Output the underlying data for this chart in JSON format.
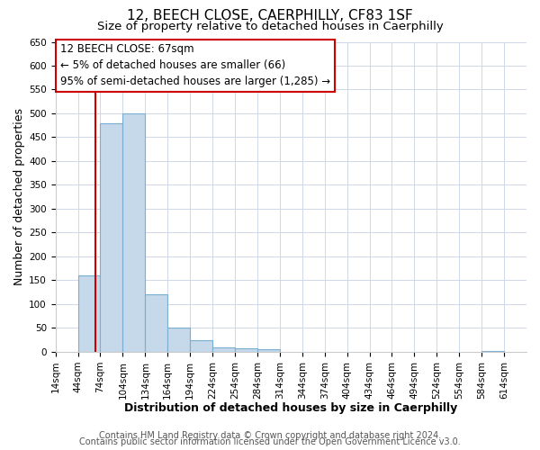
{
  "title": "12, BEECH CLOSE, CAERPHILLY, CF83 1SF",
  "subtitle": "Size of property relative to detached houses in Caerphilly",
  "xlabel": "Distribution of detached houses by size in Caerphilly",
  "ylabel": "Number of detached properties",
  "bin_edges": [
    14,
    44,
    74,
    104,
    134,
    164,
    194,
    224,
    254,
    284,
    314,
    344,
    374,
    404,
    434,
    464,
    494,
    524,
    554,
    584,
    614
  ],
  "bar_heights": [
    0,
    160,
    480,
    500,
    120,
    50,
    25,
    10,
    7,
    5,
    0,
    0,
    0,
    0,
    0,
    0,
    0,
    0,
    0,
    2
  ],
  "bar_color": "#c5d9ea",
  "bar_edgecolor": "#7aafd4",
  "vline_x": 67,
  "vline_color": "#cc0000",
  "ylim": [
    0,
    650
  ],
  "yticks": [
    0,
    50,
    100,
    150,
    200,
    250,
    300,
    350,
    400,
    450,
    500,
    550,
    600,
    650
  ],
  "xtick_labels": [
    "14sqm",
    "44sqm",
    "74sqm",
    "104sqm",
    "134sqm",
    "164sqm",
    "194sqm",
    "224sqm",
    "254sqm",
    "284sqm",
    "314sqm",
    "344sqm",
    "374sqm",
    "404sqm",
    "434sqm",
    "464sqm",
    "494sqm",
    "524sqm",
    "554sqm",
    "584sqm",
    "614sqm"
  ],
  "annotation_title": "12 BEECH CLOSE: 67sqm",
  "annotation_line1": "← 5% of detached houses are smaller (66)",
  "annotation_line2": "95% of semi-detached houses are larger (1,285) →",
  "footer_line1": "Contains HM Land Registry data © Crown copyright and database right 2024.",
  "footer_line2": "Contains public sector information licensed under the Open Government Licence v3.0.",
  "background_color": "#ffffff",
  "grid_color": "#d0d8e8",
  "title_fontsize": 11,
  "subtitle_fontsize": 9.5,
  "axis_label_fontsize": 9,
  "tick_fontsize": 7.5,
  "footer_fontsize": 7,
  "annotation_fontsize": 8.5
}
